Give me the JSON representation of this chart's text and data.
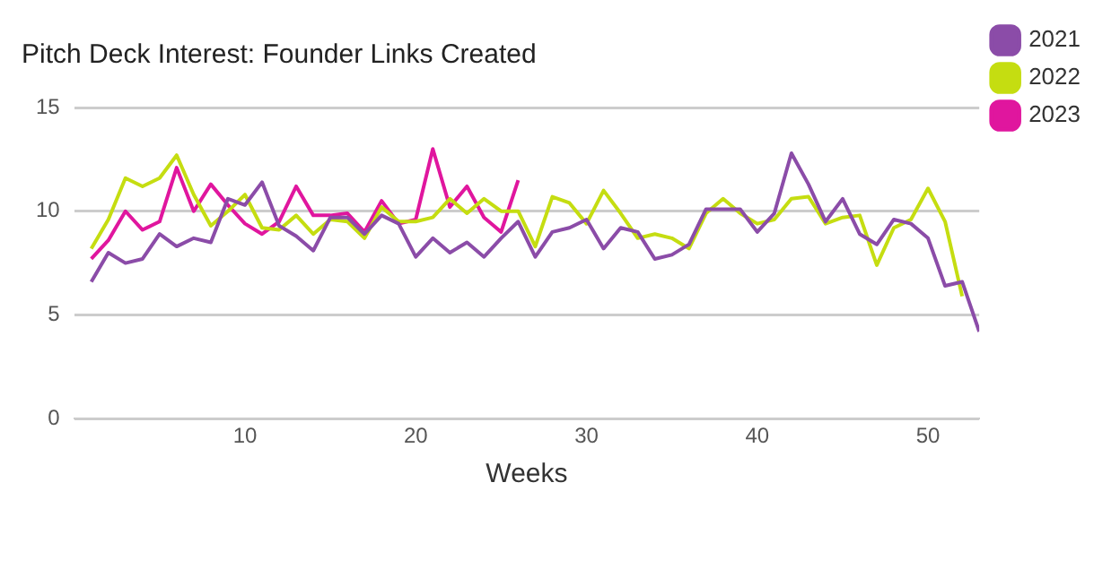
{
  "chart_data": {
    "type": "line",
    "title": "Pitch Deck Interest: Founder Links Created",
    "xlabel": "Weeks",
    "x": [
      1,
      2,
      3,
      4,
      5,
      6,
      7,
      8,
      9,
      10,
      11,
      12,
      13,
      14,
      15,
      16,
      17,
      18,
      19,
      20,
      21,
      22,
      23,
      24,
      25,
      26,
      27,
      28,
      29,
      30,
      31,
      32,
      33,
      34,
      35,
      36,
      37,
      38,
      39,
      40,
      41,
      42,
      43,
      44,
      45,
      46,
      47,
      48,
      49,
      50,
      51,
      52,
      53
    ],
    "xlim": [
      0,
      53
    ],
    "xticks": [
      10,
      20,
      30,
      40,
      50
    ],
    "ylim": [
      0,
      15
    ],
    "yticks": [
      0,
      5,
      10,
      15
    ],
    "grid": "y",
    "legend": "right",
    "marker": "none",
    "line_style": "solid",
    "series": [
      {
        "name": "2021",
        "color": "#8b4ca8",
        "values": [
          6.6,
          8.0,
          7.5,
          7.7,
          8.9,
          8.3,
          8.7,
          8.5,
          10.6,
          10.3,
          11.4,
          9.3,
          8.8,
          8.1,
          9.7,
          9.7,
          8.9,
          9.8,
          9.4,
          7.8,
          8.7,
          8.0,
          8.5,
          7.8,
          8.7,
          9.5,
          7.8,
          9.0,
          9.2,
          9.6,
          8.2,
          9.2,
          9.0,
          7.7,
          7.9,
          8.4,
          10.1,
          10.1,
          10.1,
          9.0,
          9.9,
          12.8,
          11.3,
          9.5,
          10.6,
          8.9,
          8.4,
          9.6,
          9.4,
          8.7,
          6.4,
          6.6,
          4.2
        ]
      },
      {
        "name": "2022",
        "color": "#c5dd11",
        "values": [
          8.2,
          9.6,
          11.6,
          11.2,
          11.6,
          12.7,
          10.8,
          9.3,
          10.0,
          10.8,
          9.2,
          9.1,
          9.8,
          8.9,
          9.6,
          9.5,
          8.7,
          10.2,
          9.5,
          9.5,
          9.7,
          10.6,
          9.9,
          10.6,
          10.0,
          10.0,
          8.3,
          10.7,
          10.4,
          9.4,
          11.0,
          9.9,
          8.7,
          8.9,
          8.7,
          8.2,
          9.9,
          10.6,
          9.9,
          9.4,
          9.6,
          10.6,
          10.7,
          9.4,
          9.7,
          9.8,
          7.4,
          9.2,
          9.6,
          11.1,
          9.5,
          5.9,
          null
        ]
      },
      {
        "name": "2023",
        "color": "#e0169e",
        "values": [
          7.7,
          8.6,
          10.0,
          9.1,
          9.5,
          12.1,
          10.0,
          11.3,
          10.3,
          9.4,
          8.9,
          9.5,
          11.2,
          9.8,
          9.8,
          9.9,
          9.0,
          10.5,
          9.4,
          9.6,
          13.0,
          10.2,
          11.2,
          9.7,
          9.0,
          11.5,
          null,
          null,
          null,
          null,
          null,
          null,
          null,
          null,
          null,
          null,
          null,
          null,
          null,
          null,
          null,
          null,
          null,
          null,
          null,
          null,
          null,
          null,
          null,
          null,
          null,
          null,
          null
        ]
      }
    ]
  }
}
